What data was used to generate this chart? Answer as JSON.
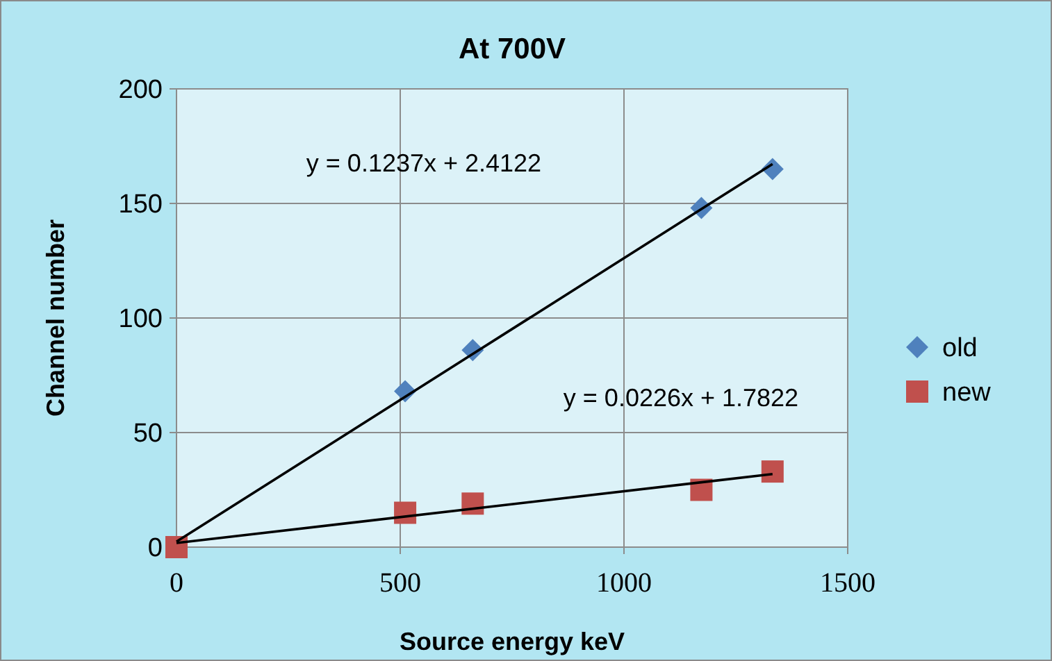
{
  "chart_data": {
    "type": "scatter",
    "title": "At 700V",
    "xlabel": "Source energy keV",
    "ylabel": "Channel number",
    "xlim": [
      0,
      1500
    ],
    "xticks": [
      0,
      500,
      1000,
      1500
    ],
    "ylim": [
      0,
      200
    ],
    "yticks": [
      0,
      50,
      100,
      150,
      200
    ],
    "grid": true,
    "legend": "right",
    "series": [
      {
        "name": "old",
        "color": "#4f81bd",
        "marker": "diamond",
        "x": [
          511,
          662,
          1173,
          1332
        ],
        "values": [
          68,
          86,
          148,
          165
        ]
      },
      {
        "name": "new",
        "color": "#c0504d",
        "marker": "square",
        "x": [
          0,
          511,
          662,
          1173,
          1332
        ],
        "values": [
          0,
          15,
          19,
          25,
          33
        ]
      },
      {
        "type": "line",
        "color": "#000000",
        "marker": "none",
        "x": [
          0,
          1332
        ],
        "values": [
          2.4,
          167.2
        ]
      },
      {
        "type": "line",
        "color": "#000000",
        "marker": "none",
        "x": [
          0,
          1332
        ],
        "values": [
          1.8,
          31.9
        ]
      }
    ],
    "annotations": [
      "y = 0.1237x + 2.4122",
      "y = 0.0226x + 1.7822"
    ]
  }
}
